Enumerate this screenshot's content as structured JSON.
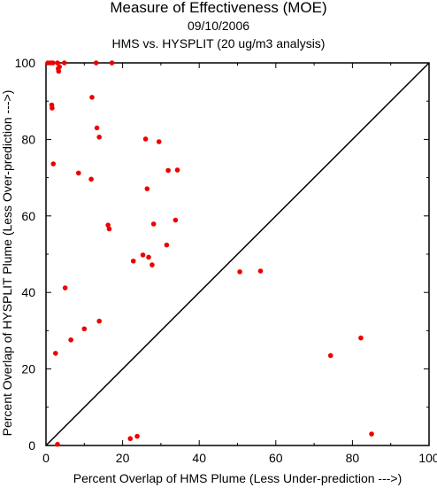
{
  "header": {
    "title": "Measure of Effectiveness (MOE)",
    "date": "09/10/2006",
    "subtitle": "HMS vs. HYSPLIT  (20 ug/m3 analysis)"
  },
  "colors": {
    "points": "#ee0000",
    "axes": "#000000",
    "diagonal": "#000000"
  },
  "chart_data": {
    "type": "scatter",
    "xlabel": "Percent Overlap of HMS Plume (Less Under-prediction --->)",
    "ylabel": "Percent Overlap of HYSPLIT Plume (Less Over-prediction --->)",
    "xlim": [
      0,
      100
    ],
    "ylim": [
      0,
      100
    ],
    "xticks": [
      0,
      20,
      40,
      60,
      80,
      100
    ],
    "yticks": [
      0,
      20,
      40,
      60,
      80,
      100
    ],
    "xtick_labels": [
      "0",
      "20",
      "40",
      "60",
      "80",
      "100"
    ],
    "ytick_labels": [
      "0",
      "20",
      "40",
      "60",
      "80",
      "100"
    ],
    "grid": false,
    "reference_line": "y = x",
    "points": [
      {
        "x": 0.5,
        "y": 100
      },
      {
        "x": 1.2,
        "y": 100
      },
      {
        "x": 1.8,
        "y": 100
      },
      {
        "x": 3.0,
        "y": 100
      },
      {
        "x": 3.5,
        "y": 99
      },
      {
        "x": 3.2,
        "y": 98.5
      },
      {
        "x": 3.3,
        "y": 97.8
      },
      {
        "x": 4.8,
        "y": 100
      },
      {
        "x": 13.1,
        "y": 100
      },
      {
        "x": 17.2,
        "y": 100
      },
      {
        "x": 1.5,
        "y": 89
      },
      {
        "x": 1.6,
        "y": 88.2
      },
      {
        "x": 12.0,
        "y": 91
      },
      {
        "x": 13.3,
        "y": 83
      },
      {
        "x": 13.9,
        "y": 80.6
      },
      {
        "x": 26.0,
        "y": 80.1
      },
      {
        "x": 29.5,
        "y": 79.4
      },
      {
        "x": 1.9,
        "y": 73.6
      },
      {
        "x": 8.5,
        "y": 71.2
      },
      {
        "x": 11.8,
        "y": 69.6
      },
      {
        "x": 31.9,
        "y": 71.9
      },
      {
        "x": 34.3,
        "y": 72.0
      },
      {
        "x": 26.4,
        "y": 67.1
      },
      {
        "x": 16.2,
        "y": 57.6
      },
      {
        "x": 16.5,
        "y": 56.6
      },
      {
        "x": 28.1,
        "y": 57.9
      },
      {
        "x": 33.8,
        "y": 58.9
      },
      {
        "x": 31.5,
        "y": 52.4
      },
      {
        "x": 25.3,
        "y": 49.8
      },
      {
        "x": 26.8,
        "y": 49.2
      },
      {
        "x": 22.8,
        "y": 48.2
      },
      {
        "x": 27.7,
        "y": 47.2
      },
      {
        "x": 50.6,
        "y": 45.4
      },
      {
        "x": 56.0,
        "y": 45.6
      },
      {
        "x": 5.0,
        "y": 41.2
      },
      {
        "x": 13.9,
        "y": 32.5
      },
      {
        "x": 10.0,
        "y": 30.5
      },
      {
        "x": 6.5,
        "y": 27.6
      },
      {
        "x": 2.5,
        "y": 24.1
      },
      {
        "x": 82.2,
        "y": 28.1
      },
      {
        "x": 74.3,
        "y": 23.5
      },
      {
        "x": 85.0,
        "y": 3.0
      },
      {
        "x": 23.8,
        "y": 2.4
      },
      {
        "x": 22.0,
        "y": 1.8
      },
      {
        "x": 3.0,
        "y": 0.3
      }
    ]
  }
}
